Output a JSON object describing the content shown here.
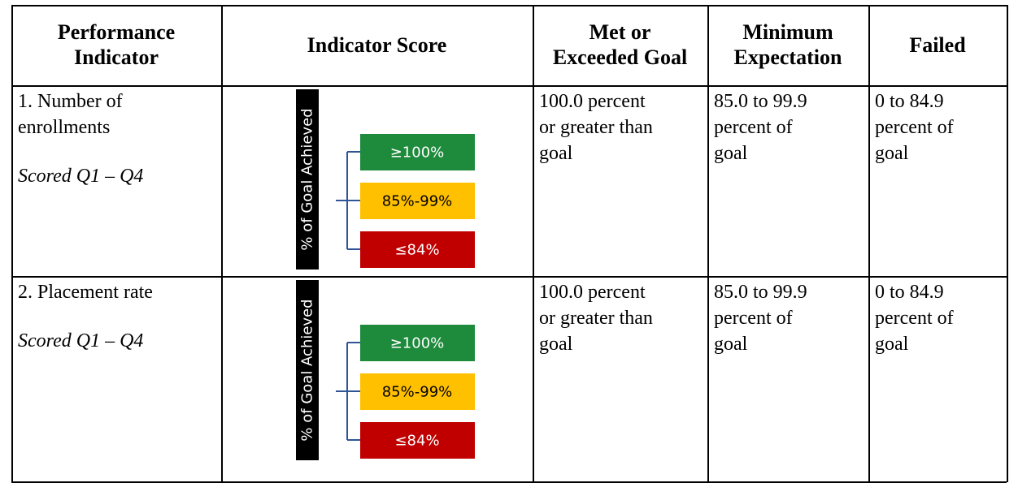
{
  "table": {
    "header": [
      [
        "Performance",
        "Indicator"
      ],
      [
        "Indicator Score"
      ],
      [
        "Met or",
        "Exceeded Goal"
      ],
      [
        "Minimum",
        "Expectation"
      ],
      [
        "Failed"
      ]
    ],
    "rows": [
      {
        "indicator": [
          "1. Number of",
          "enrollments"
        ],
        "scored": "Scored Q1 – Q4",
        "scale": {
          "axis_label": "% of Goal Achieved",
          "levels": [
            {
              "label": "≥100%",
              "color": "#1e8a3c",
              "text_color": "#ffffff"
            },
            {
              "label": "85%-99%",
              "color": "#ffc000",
              "text_color": "#000000"
            },
            {
              "label": "≤84%",
              "color": "#c00000",
              "text_color": "#ffffff"
            }
          ]
        },
        "met": [
          "100.0 percent",
          "or greater than",
          "goal"
        ],
        "minimum": [
          "85.0 to 99.9",
          "percent of",
          "goal"
        ],
        "failed": [
          "0 to 84.9",
          "percent of",
          "goal"
        ]
      },
      {
        "indicator": [
          "2. Placement rate"
        ],
        "scored": "Scored Q1 – Q4",
        "scale": {
          "axis_label": "% of Goal Achieved",
          "levels": [
            {
              "label": "≥100%",
              "color": "#1e8a3c",
              "text_color": "#ffffff"
            },
            {
              "label": "85%-99%",
              "color": "#ffc000",
              "text_color": "#000000"
            },
            {
              "label": "≤84%",
              "color": "#c00000",
              "text_color": "#ffffff"
            }
          ]
        },
        "met": [
          "100.0 percent",
          "or greater than",
          "goal"
        ],
        "minimum": [
          "85.0 to 99.9",
          "percent of",
          "goal"
        ],
        "failed": [
          "0 to 84.9",
          "percent of",
          "goal"
        ]
      }
    ]
  }
}
